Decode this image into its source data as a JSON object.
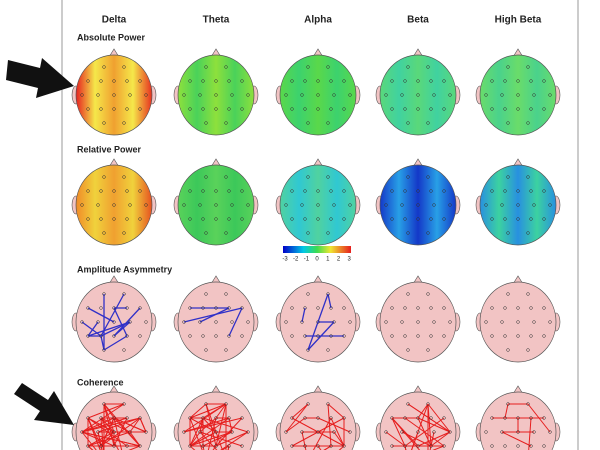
{
  "columns": [
    "Delta",
    "Theta",
    "Alpha",
    "Beta",
    "High Beta"
  ],
  "rows": [
    "Absolute Power",
    "Relative Power",
    "Amplitude Asymmetry",
    "Coherence"
  ],
  "colorbar": {
    "labels": [
      "-3",
      "-2",
      "-1",
      "0",
      "1",
      "2",
      "3"
    ]
  }
}
